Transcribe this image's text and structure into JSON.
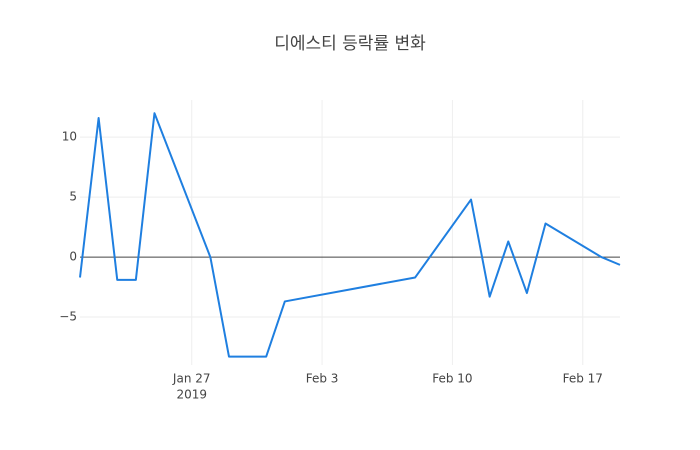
{
  "chart_data": {
    "type": "line",
    "title": "디에스티 등락률 변화",
    "x": [
      "2019-01-21",
      "2019-01-22",
      "2019-01-23",
      "2019-01-24",
      "2019-01-25",
      "2019-01-28",
      "2019-01-29",
      "2019-01-31",
      "2019-02-01",
      "2019-02-08",
      "2019-02-11",
      "2019-02-12",
      "2019-02-13",
      "2019-02-14",
      "2019-02-15",
      "2019-02-18",
      "2019-02-19"
    ],
    "series": [
      {
        "color": "#1f7fe0",
        "values": [
          -1.7,
          11.6,
          -1.9,
          -1.9,
          12.0,
          0,
          -8.3,
          -8.3,
          -3.7,
          -1.7,
          4.8,
          -3.3,
          1.3,
          -3.0,
          2.8,
          0,
          -0.65
        ]
      }
    ],
    "xlim": [
      "2019-01-21",
      "2019-02-19"
    ],
    "xticks": [
      {
        "value": "2019-01-27",
        "label": "Jan 27"
      },
      {
        "value": "2019-02-03",
        "label": "Feb 3"
      },
      {
        "value": "2019-02-10",
        "label": "Feb 10"
      },
      {
        "value": "2019-02-17",
        "label": "Feb 17"
      }
    ],
    "x_year_label": "2019",
    "ylim": [
      -9,
      13.1
    ],
    "yticks": [
      {
        "value": -5,
        "label": "−5"
      },
      0,
      5,
      10
    ],
    "grid": true,
    "zeroline": true
  }
}
